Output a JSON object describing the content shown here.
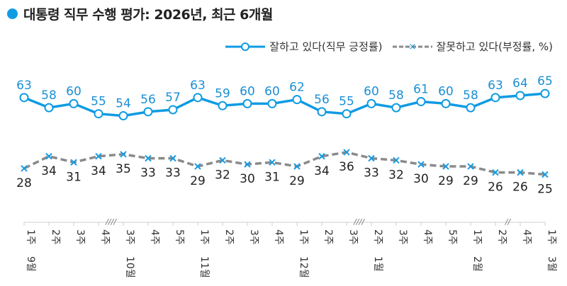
{
  "title": "대통령 직무 수행 평가: 2026년, 최근 6개월",
  "colors": {
    "positive": "#0f9be3",
    "negative": "#8a8a8a",
    "neg_marker": "#1a9be0",
    "title_dot": "#0f9be3"
  },
  "chart_data": {
    "type": "line",
    "title": "대통령 직무 수행 평가: 2026년, 최근 6개월",
    "xlabel": "",
    "ylabel": "",
    "categories": [
      {
        "week": "1주",
        "month": "9월"
      },
      {
        "week": "2주",
        "month": ""
      },
      {
        "week": "3주",
        "month": ""
      },
      {
        "week": "4주",
        "month": ""
      },
      {
        "week": "3주",
        "month": "10월"
      },
      {
        "week": "4주",
        "month": ""
      },
      {
        "week": "5주",
        "month": ""
      },
      {
        "week": "1주",
        "month": "11월"
      },
      {
        "week": "2주",
        "month": ""
      },
      {
        "week": "3주",
        "month": ""
      },
      {
        "week": "4주",
        "month": ""
      },
      {
        "week": "1주",
        "month": "12월"
      },
      {
        "week": "2주",
        "month": ""
      },
      {
        "week": "3주",
        "month": ""
      },
      {
        "week": "2주",
        "month": "1월"
      },
      {
        "week": "3주",
        "month": ""
      },
      {
        "week": "4주",
        "month": ""
      },
      {
        "week": "5주",
        "month": ""
      },
      {
        "week": "1주",
        "month": "2월"
      },
      {
        "week": "2주",
        "month": ""
      },
      {
        "week": "4주",
        "month": ""
      },
      {
        "week": "1주",
        "month": "3월"
      }
    ],
    "axis_breaks": [
      {
        "after_index": 3,
        "mark": "////"
      },
      {
        "after_index": 13,
        "mark": "////"
      },
      {
        "after_index": 19,
        "mark": "//"
      }
    ],
    "series": [
      {
        "name": "잘하고 있다(직무 긍정률)",
        "style": "solid-circle",
        "values": [
          63,
          58,
          60,
          55,
          54,
          56,
          57,
          63,
          59,
          60,
          60,
          62,
          56,
          55,
          60,
          58,
          61,
          60,
          58,
          63,
          64,
          65
        ]
      },
      {
        "name": "잘못하고 있다(부정률, %)",
        "style": "dashed-x",
        "values": [
          28,
          34,
          31,
          34,
          35,
          33,
          33,
          29,
          32,
          30,
          31,
          29,
          34,
          36,
          33,
          32,
          30,
          29,
          29,
          26,
          26,
          25
        ]
      }
    ],
    "grid": false,
    "legend_position": "top-right"
  }
}
